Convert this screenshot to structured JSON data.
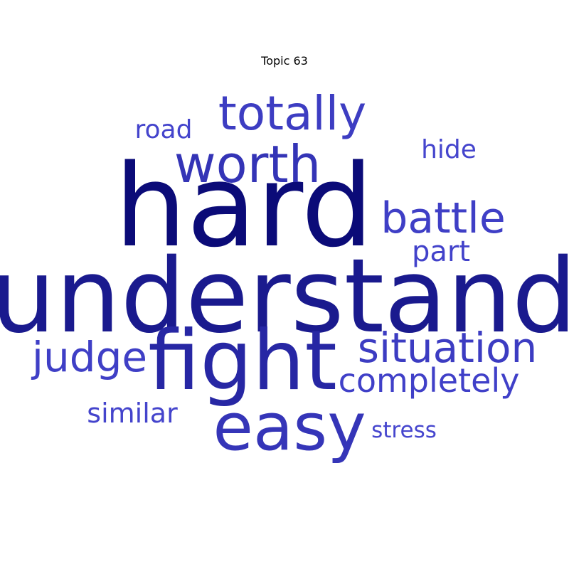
{
  "title": "Topic 63",
  "words": {
    "hard": {
      "text": "hard",
      "color": "#0b0b78"
    },
    "understand": {
      "text": "understand",
      "color": "#1a1a8e"
    },
    "fight": {
      "text": "fight",
      "color": "#2727a4"
    },
    "easy": {
      "text": "easy",
      "color": "#3535b8"
    },
    "worth": {
      "text": "worth",
      "color": "#3434b6"
    },
    "totally": {
      "text": "totally",
      "color": "#3d3dc2"
    },
    "battle": {
      "text": "battle",
      "color": "#3f3fc6"
    },
    "situation": {
      "text": "situation",
      "color": "#3c3cc2"
    },
    "judge": {
      "text": "judge",
      "color": "#3f3fc6"
    },
    "completely": {
      "text": "completely",
      "color": "#4040c8"
    },
    "part": {
      "text": "part",
      "color": "#4242ca"
    },
    "similar": {
      "text": "similar",
      "color": "#4444cc"
    },
    "road": {
      "text": "road",
      "color": "#4444cc"
    },
    "hide": {
      "text": "hide",
      "color": "#4545cd"
    },
    "stress": {
      "text": "stress",
      "color": "#4646ce"
    }
  }
}
